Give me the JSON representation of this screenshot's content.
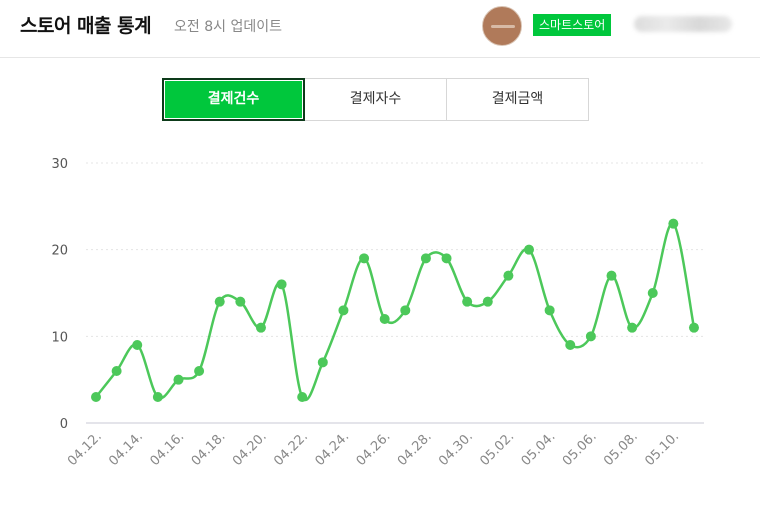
{
  "header": {
    "title": "스토어 매출 통계",
    "subtitle": "오전 8시 업데이트",
    "store_badge": "스마트스토어"
  },
  "tabs": [
    {
      "label": "결제건수",
      "active": true
    },
    {
      "label": "결제자수",
      "active": false
    },
    {
      "label": "결제금액",
      "active": false
    }
  ],
  "colors": {
    "accent": "#00c73c",
    "line": "#4cc85a"
  },
  "chart_data": {
    "type": "line",
    "x": [
      "04.12.",
      "04.13.",
      "04.14.",
      "04.15.",
      "04.16.",
      "04.17.",
      "04.18.",
      "04.19.",
      "04.20.",
      "04.21.",
      "04.22.",
      "04.23.",
      "04.24.",
      "04.25.",
      "04.26.",
      "04.27.",
      "04.28.",
      "04.29.",
      "04.30.",
      "05.01.",
      "05.02.",
      "05.03.",
      "05.04.",
      "05.05.",
      "05.06.",
      "05.07.",
      "05.08.",
      "05.09.",
      "05.10.",
      "05.11."
    ],
    "x_tick_labels": [
      "04.12.",
      "04.14.",
      "04.16.",
      "04.18.",
      "04.20.",
      "04.22.",
      "04.24.",
      "04.26.",
      "04.28.",
      "04.30.",
      "05.02.",
      "05.04.",
      "05.06.",
      "05.08.",
      "05.10."
    ],
    "values": [
      3,
      6,
      9,
      3,
      5,
      6,
      14,
      14,
      11,
      16,
      3,
      7,
      13,
      19,
      12,
      13,
      19,
      19,
      14,
      14,
      17,
      20,
      13,
      9,
      10,
      17,
      11,
      15,
      23,
      11
    ],
    "yticks": [
      0,
      10,
      20,
      30
    ],
    "ylim": [
      0,
      30
    ],
    "grid": true,
    "smooth": true
  }
}
